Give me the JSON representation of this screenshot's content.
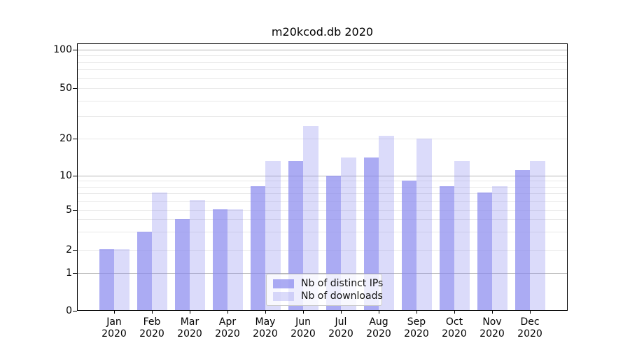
{
  "title": "m20kcod.db 2020",
  "legend": {
    "items": [
      {
        "label": "Nb of distinct IPs",
        "color": "rgba(136,136,238,0.7)"
      },
      {
        "label": "Nb of downloads",
        "color": "rgba(136,136,238,0.3)"
      }
    ]
  },
  "x_axis": {
    "months": [
      "Jan",
      "Feb",
      "Mar",
      "Apr",
      "May",
      "Jun",
      "Jul",
      "Aug",
      "Sep",
      "Oct",
      "Nov",
      "Dec"
    ],
    "year": "2020"
  },
  "y_axis": {
    "tick_labels": [
      "0",
      "1",
      "2",
      "5",
      "10",
      "20",
      "50",
      "100"
    ]
  },
  "chart_data": {
    "type": "bar",
    "title": "m20kcod.db 2020",
    "categories": [
      "Jan 2020",
      "Feb 2020",
      "Mar 2020",
      "Apr 2020",
      "May 2020",
      "Jun 2020",
      "Jul 2020",
      "Aug 2020",
      "Sep 2020",
      "Oct 2020",
      "Nov 2020",
      "Dec 2020"
    ],
    "series": [
      {
        "name": "Nb of distinct IPs",
        "values": [
          2,
          3,
          4,
          5,
          8,
          13,
          10,
          14,
          9,
          8,
          7,
          11
        ],
        "color": "rgba(136,136,238,0.7)"
      },
      {
        "name": "Nb of downloads",
        "values": [
          2,
          7,
          6,
          5,
          13,
          25,
          14,
          21,
          20,
          13,
          8,
          13
        ],
        "color": "rgba(136,136,238,0.3)"
      }
    ],
    "y_axis": {
      "scale": "symlog-like",
      "ticks": [
        0,
        1,
        2,
        5,
        10,
        20,
        50,
        100
      ],
      "major_gridlines": [
        1,
        10,
        100
      ],
      "minor_gridlines": [
        2,
        3,
        4,
        5,
        6,
        7,
        8,
        9,
        20,
        30,
        40,
        50,
        60,
        70,
        80,
        90
      ],
      "ylim": [
        0,
        112
      ]
    },
    "grid": true,
    "legend_position": "lower center"
  }
}
